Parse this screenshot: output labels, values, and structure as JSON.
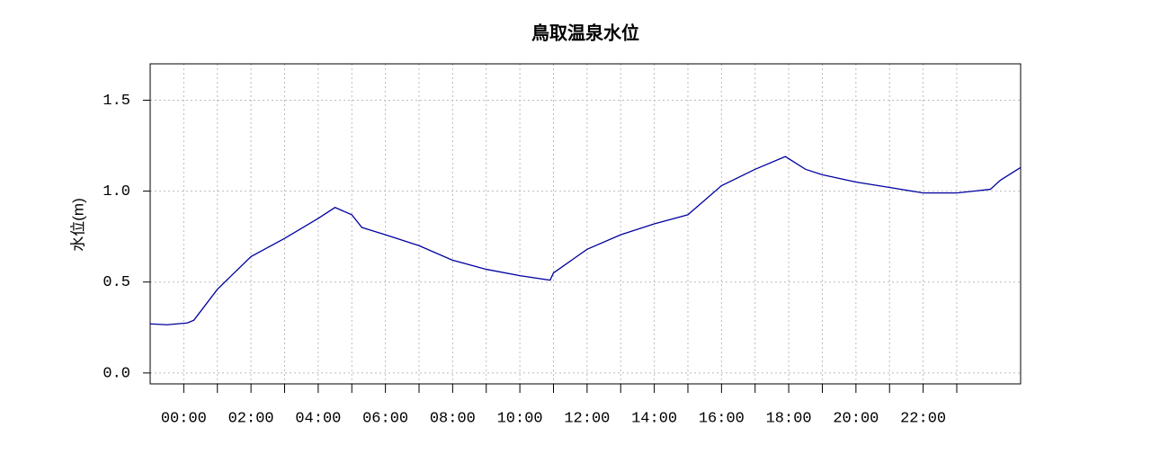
{
  "chart_data": {
    "type": "line",
    "title": "鳥取温泉水位",
    "y_label": "水位(m)",
    "x": [
      -1,
      -0.5,
      0.1,
      0.3,
      1,
      2,
      3,
      4,
      4.5,
      5,
      5.3,
      6,
      7,
      8,
      9,
      10,
      10.9,
      11,
      12,
      13,
      14,
      15,
      16,
      17,
      17.9,
      18.5,
      19,
      20,
      21,
      22,
      23,
      23.5,
      24,
      24.3,
      24.9
    ],
    "series": [
      {
        "name": "水位",
        "color": "#0000a0",
        "values": [
          0.27,
          0.265,
          0.275,
          0.29,
          0.46,
          0.64,
          0.74,
          0.85,
          0.91,
          0.87,
          0.8,
          0.76,
          0.7,
          0.62,
          0.57,
          0.535,
          0.51,
          0.55,
          0.68,
          0.76,
          0.82,
          0.87,
          1.03,
          1.12,
          1.19,
          1.12,
          1.09,
          1.05,
          1.02,
          0.99,
          0.99,
          1.0,
          1.01,
          1.06,
          1.13
        ]
      }
    ],
    "xlim": [
      -1,
      24.9
    ],
    "xticks": [
      {
        "value": 0,
        "label": "00:00"
      },
      {
        "value": 2,
        "label": "02:00"
      },
      {
        "value": 4,
        "label": "04:00"
      },
      {
        "value": 6,
        "label": "06:00"
      },
      {
        "value": 8,
        "label": "08:00"
      },
      {
        "value": 10,
        "label": "10:00"
      },
      {
        "value": 12,
        "label": "12:00"
      },
      {
        "value": 14,
        "label": "14:00"
      },
      {
        "value": 16,
        "label": "16:00"
      },
      {
        "value": 18,
        "label": "18:00"
      },
      {
        "value": 20,
        "label": "20:00"
      },
      {
        "value": 22,
        "label": "22:00"
      }
    ],
    "xminorticks": [
      1,
      3,
      5,
      7,
      9,
      11,
      13,
      15,
      17,
      19,
      21,
      23
    ],
    "ylim": [
      -0.06,
      1.7
    ],
    "yticks": [
      {
        "value": 0,
        "label": "0.0"
      },
      {
        "value": 0.5,
        "label": "0.5"
      },
      {
        "value": 1,
        "label": "1.0"
      },
      {
        "value": 1.5,
        "label": "1.5"
      }
    ],
    "grid": true
  }
}
